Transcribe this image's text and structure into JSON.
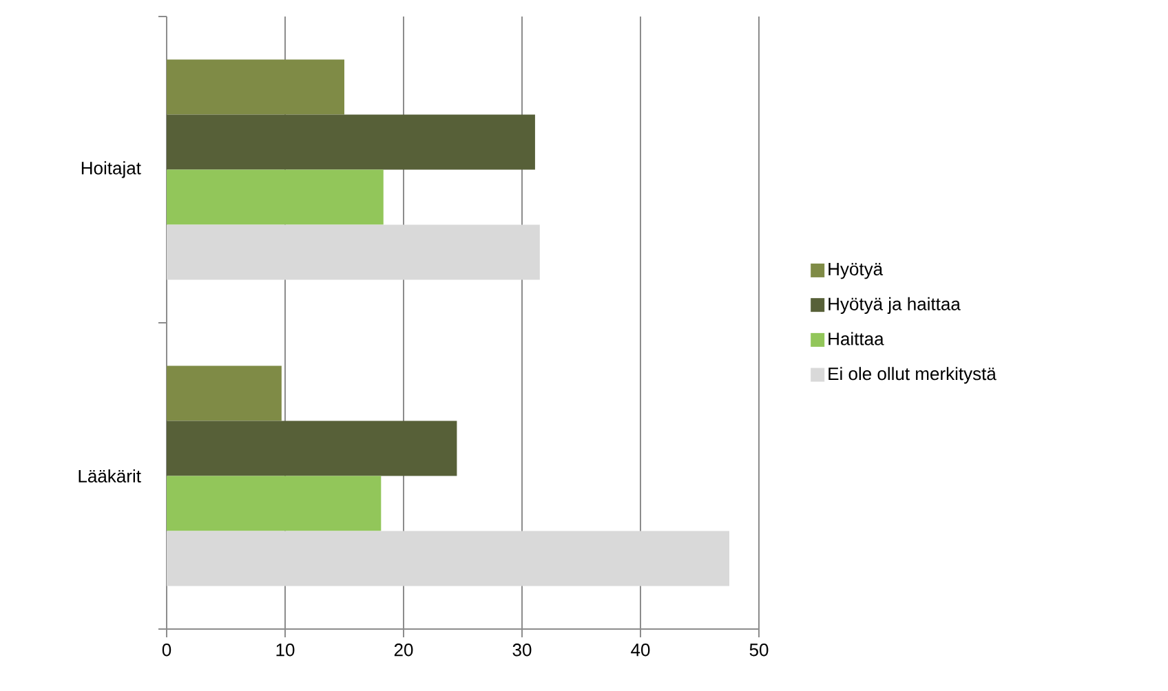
{
  "chart_data": {
    "type": "bar",
    "orientation": "horizontal",
    "categories": [
      "Hoitajat",
      "Lääkärit"
    ],
    "series": [
      {
        "name": "Hyötyä",
        "color": "#7f8b46",
        "values": [
          15.0,
          9.7
        ]
      },
      {
        "name": "Hyötyä ja haittaa",
        "color": "#576038",
        "values": [
          31.1,
          24.5
        ]
      },
      {
        "name": "Haittaa",
        "color": "#92c65a",
        "values": [
          18.3,
          18.1
        ]
      },
      {
        "name": "Ei ole ollut merkitystä",
        "color": "#d9d9d9",
        "values": [
          31.5,
          47.5
        ]
      }
    ],
    "xlim": [
      0,
      50
    ],
    "xticks": [
      0,
      10,
      20,
      30,
      40,
      50
    ],
    "grid": "x",
    "legend": "right"
  }
}
